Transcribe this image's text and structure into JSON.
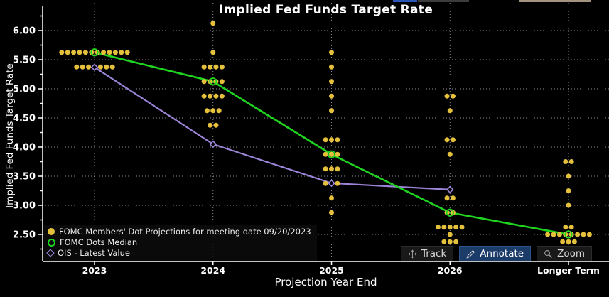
{
  "window": {
    "top_edge_segments": [
      {
        "name": "blue-tab-edge",
        "color": "#2a57b8",
        "x": 553,
        "w": 34
      },
      {
        "name": "grey-tab-edge",
        "color": "#3c3c3c",
        "x": 588,
        "w": 72
      },
      {
        "name": "tan-tab-edge",
        "color": "#a4947f",
        "x": 731,
        "w": 100
      }
    ]
  },
  "colors": {
    "background": "#000000",
    "dot_gold": "#e4c03c",
    "median_green": "#1fd41f",
    "ois_purple": "#9c85d8",
    "grid": "#ffffff",
    "axis": "#ffffff",
    "annotate_active_bg": "#1b3b69"
  },
  "chart_data": {
    "type": "scatter",
    "title": "Implied Fed Funds Target Rate",
    "xlabel": "Projection Year End",
    "ylabel": "Implied Fed Funds Target Rate",
    "categories": [
      "2023",
      "2024",
      "2025",
      "2026",
      "Longer Term"
    ],
    "y_tick_labels": [
      "6.00",
      "5.50",
      "5.00",
      "4.50",
      "4.00",
      "3.50",
      "3.00",
      "2.50"
    ],
    "y_tick_values": [
      6.0,
      5.5,
      5.0,
      4.5,
      4.0,
      3.5,
      3.0,
      2.5
    ],
    "y_minor_step": 0.25,
    "ylim": [
      2.05,
      6.4
    ],
    "grid": "dotted",
    "legend_position": "bottom-left",
    "series": [
      {
        "name": "FOMC Members' Dot Projections for meeting date 09/20/2023",
        "type": "dots",
        "color": "#e4c03c",
        "dots": [
          {
            "category": "2023",
            "groups": [
              {
                "rate": 5.625,
                "count": 12
              },
              {
                "rate": 5.375,
                "count": 7
              }
            ]
          },
          {
            "category": "2024",
            "groups": [
              {
                "rate": 6.125,
                "count": 1
              },
              {
                "rate": 5.625,
                "count": 1
              },
              {
                "rate": 5.375,
                "count": 4
              },
              {
                "rate": 5.125,
                "count": 4
              },
              {
                "rate": 4.875,
                "count": 4
              },
              {
                "rate": 4.625,
                "count": 3
              },
              {
                "rate": 4.375,
                "count": 2
              }
            ]
          },
          {
            "category": "2025",
            "groups": [
              {
                "rate": 5.625,
                "count": 1
              },
              {
                "rate": 5.375,
                "count": 1
              },
              {
                "rate": 5.125,
                "count": 1
              },
              {
                "rate": 4.875,
                "count": 1
              },
              {
                "rate": 4.625,
                "count": 1
              },
              {
                "rate": 4.125,
                "count": 3
              },
              {
                "rate": 3.875,
                "count": 3
              },
              {
                "rate": 3.625,
                "count": 3
              },
              {
                "rate": 3.375,
                "count": 3
              },
              {
                "rate": 3.125,
                "count": 1
              },
              {
                "rate": 2.875,
                "count": 1
              }
            ]
          },
          {
            "category": "2026",
            "groups": [
              {
                "rate": 4.875,
                "count": 2
              },
              {
                "rate": 4.625,
                "count": 1
              },
              {
                "rate": 4.125,
                "count": 2
              },
              {
                "rate": 3.875,
                "count": 1
              },
              {
                "rate": 3.125,
                "count": 2
              },
              {
                "rate": 2.875,
                "count": 2
              },
              {
                "rate": 2.625,
                "count": 5
              },
              {
                "rate": 2.5,
                "count": 1
              },
              {
                "rate": 2.375,
                "count": 3
              }
            ]
          },
          {
            "category": "Longer Term",
            "groups": [
              {
                "rate": 3.75,
                "count": 2
              },
              {
                "rate": 3.5,
                "count": 1
              },
              {
                "rate": 3.25,
                "count": 1
              },
              {
                "rate": 3.0,
                "count": 1
              },
              {
                "rate": 2.625,
                "count": 2
              },
              {
                "rate": 2.5,
                "count": 8
              },
              {
                "rate": 2.375,
                "count": 3
              }
            ]
          }
        ]
      },
      {
        "name": "FOMC Dots Median",
        "type": "line-circle",
        "color": "#1fd41f",
        "categories": [
          "2023",
          "2024",
          "2025",
          "2026",
          "Longer Term"
        ],
        "values": [
          5.625,
          5.125,
          3.875,
          2.875,
          2.5
        ]
      },
      {
        "name": "OIS - Latest Value",
        "type": "line-diamond",
        "color": "#9c85d8",
        "categories": [
          "2023",
          "2024",
          "2025",
          "2026"
        ],
        "values": [
          5.37,
          4.05,
          3.38,
          3.27
        ]
      }
    ]
  },
  "toolbar": {
    "track_label": "Track",
    "annotate_label": "Annotate",
    "zoom_label": "Zoom",
    "active_button": "Annotate"
  }
}
